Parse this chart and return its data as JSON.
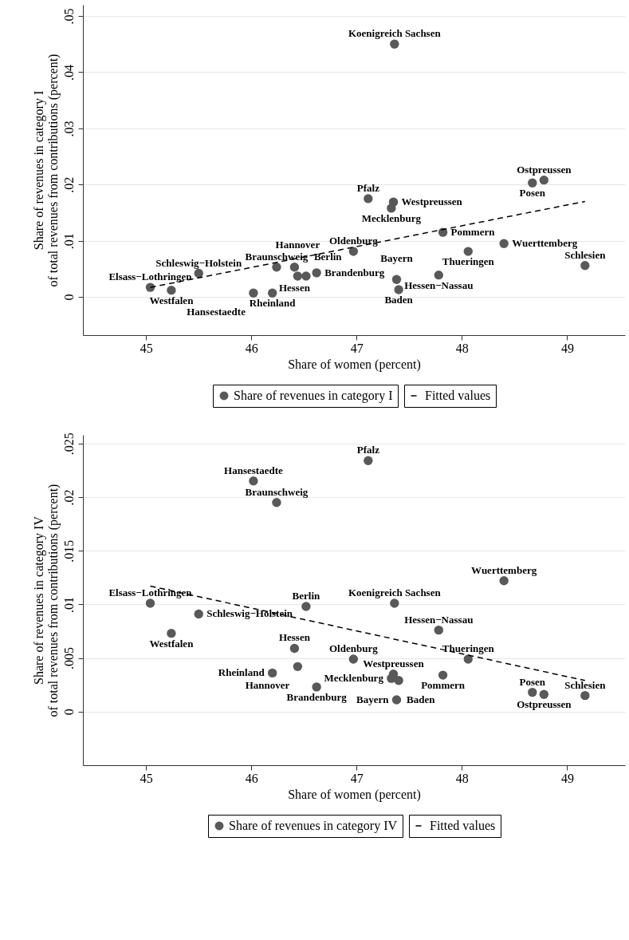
{
  "chart_data": [
    {
      "type": "scatter",
      "xlabel": "Share of women (percent)",
      "ylabel": "Share of revenues in category I\nof total revenues from contributions (percent)",
      "xlim": [
        44.4,
        49.55
      ],
      "xticks": [
        45,
        46,
        47,
        48,
        49
      ],
      "ylim": [
        -0.0068,
        0.052
      ],
      "yticks": [
        {
          "value": 0,
          "label": "0"
        },
        {
          "value": 0.01,
          "label": ".01"
        },
        {
          "value": 0.02,
          "label": ".02"
        },
        {
          "value": 0.03,
          "label": ".03"
        },
        {
          "value": 0.04,
          "label": ".04"
        },
        {
          "value": 0.05,
          "label": ".05"
        }
      ],
      "grid": "y",
      "legend": "bottom",
      "marker": "circle",
      "series": [
        {
          "name": "Share of revenues in category I",
          "type": "scatter",
          "color": "#595959",
          "x": [
            47.36,
            48.78,
            48.67,
            47.35,
            47.33,
            47.11,
            47.82,
            48.4,
            48.06,
            46.97,
            49.17,
            45.5,
            45.24,
            45.04,
            46.24,
            46.41,
            46.44,
            46.62,
            46.52,
            46.2,
            46.02,
            47.38,
            47.4,
            47.78
          ],
          "values": [
            0.045,
            0.0208,
            0.0203,
            0.0169,
            0.0158,
            0.0175,
            0.0115,
            0.0095,
            0.0081,
            0.0081,
            0.0056,
            0.0042,
            0.0012,
            0.0017,
            0.0053,
            0.0053,
            0.0037,
            0.0043,
            0.0037,
            0.0007,
            0.0007,
            0.0031,
            0.0013,
            0.0039
          ]
        },
        {
          "name": "Fitted values",
          "type": "line",
          "color": "#000000",
          "line_style": "dashed",
          "marker": "none",
          "x": [
            45.04,
            49.17
          ],
          "values": [
            0.0017,
            0.017
          ]
        }
      ],
      "annotations": [
        {
          "text": "Koenigreich Sachsen",
          "x": 47.36,
          "y": 0.045
        },
        {
          "text": "Ostpreussen",
          "x": 48.78,
          "y": 0.0208
        },
        {
          "text": "Posen",
          "x": 48.67,
          "y": 0.0203
        },
        {
          "text": "Westpreussen",
          "x": 47.35,
          "y": 0.0169
        },
        {
          "text": "Mecklenburg",
          "x": 47.33,
          "y": 0.0158
        },
        {
          "text": "Pfalz",
          "x": 47.11,
          "y": 0.0175
        },
        {
          "text": "Pommern",
          "x": 47.82,
          "y": 0.0115
        },
        {
          "text": "Wuerttemberg",
          "x": 48.4,
          "y": 0.0095
        },
        {
          "text": "Thueringen",
          "x": 48.06,
          "y": 0.0081
        },
        {
          "text": "Oldenburg",
          "x": 46.97,
          "y": 0.0081
        },
        {
          "text": "Schlesien",
          "x": 49.17,
          "y": 0.0056
        },
        {
          "text": "Schleswig−Holstein",
          "x": 45.5,
          "y": 0.0042
        },
        {
          "text": "Westfalen",
          "x": 45.24,
          "y": 0.0012
        },
        {
          "text": "Elsass−Lothringen",
          "x": 45.04,
          "y": 0.0017
        },
        {
          "text": "Braunschweig",
          "x": 46.24,
          "y": 0.0053
        },
        {
          "text": "Hessen",
          "x": 46.41,
          "y": 0.0053
        },
        {
          "text": "Hannover",
          "x": 46.44,
          "y": 0.0037
        },
        {
          "text": "Brandenburg",
          "x": 46.62,
          "y": 0.0043
        },
        {
          "text": "Berlin",
          "x": 46.52,
          "y": 0.0037
        },
        {
          "text": "Rheinland",
          "x": 46.2,
          "y": 0.0007
        },
        {
          "text": "Hansestaedte",
          "x": 46.02,
          "y": 0.0007
        },
        {
          "text": "Bayern",
          "x": 47.38,
          "y": 0.0031
        },
        {
          "text": "Baden",
          "x": 47.4,
          "y": 0.0013
        },
        {
          "text": "Hessen−Nassau",
          "x": 47.78,
          "y": 0.0039
        }
      ]
    },
    {
      "type": "scatter",
      "xlabel": "Share of women (percent)",
      "ylabel": "Share of revenues in category IV\nof total revenues from contributions (percent)",
      "xlim": [
        44.4,
        49.55
      ],
      "xticks": [
        45,
        46,
        47,
        48,
        49
      ],
      "ylim": [
        -0.005,
        0.0258
      ],
      "yticks": [
        {
          "value": 0,
          "label": "0"
        },
        {
          "value": 0.005,
          "label": ".005"
        },
        {
          "value": 0.01,
          "label": ".01"
        },
        {
          "value": 0.015,
          "label": ".015"
        },
        {
          "value": 0.02,
          "label": ".02"
        },
        {
          "value": 0.025,
          "label": ".025"
        }
      ],
      "grid": "y",
      "legend": "bottom",
      "marker": "circle",
      "series": [
        {
          "name": "Share of revenues in category IV",
          "type": "scatter",
          "color": "#595959",
          "x": [
            47.11,
            46.02,
            46.24,
            48.4,
            47.36,
            45.04,
            45.5,
            46.52,
            45.24,
            47.78,
            46.41,
            48.06,
            46.97,
            46.44,
            46.2,
            47.82,
            47.35,
            47.33,
            47.4,
            46.62,
            47.38,
            48.78,
            48.67,
            49.17
          ],
          "values": [
            0.0234,
            0.0215,
            0.0195,
            0.0122,
            0.0101,
            0.0101,
            0.0091,
            0.0098,
            0.0073,
            0.0076,
            0.0059,
            0.0049,
            0.0049,
            0.0042,
            0.0036,
            0.0034,
            0.0035,
            0.0031,
            0.0029,
            0.0023,
            0.0011,
            0.0016,
            0.0018,
            0.0015
          ]
        },
        {
          "name": "Fitted values",
          "type": "line",
          "color": "#000000",
          "line_style": "dashed",
          "marker": "none",
          "x": [
            45.04,
            49.17
          ],
          "values": [
            0.0117,
            0.0029
          ]
        }
      ],
      "annotations": [
        {
          "text": "Pfalz",
          "x": 47.11,
          "y": 0.0234
        },
        {
          "text": "Hansestaedte",
          "x": 46.02,
          "y": 0.0215
        },
        {
          "text": "Braunschweig",
          "x": 46.24,
          "y": 0.0195
        },
        {
          "text": "Wuerttemberg",
          "x": 48.4,
          "y": 0.0122
        },
        {
          "text": "Koenigreich Sachsen",
          "x": 47.36,
          "y": 0.0101
        },
        {
          "text": "Elsass−Lothringen",
          "x": 45.04,
          "y": 0.0101
        },
        {
          "text": "Schleswig−Holstein",
          "x": 45.5,
          "y": 0.0091
        },
        {
          "text": "Berlin",
          "x": 46.52,
          "y": 0.0098
        },
        {
          "text": "Westfalen",
          "x": 45.24,
          "y": 0.0073
        },
        {
          "text": "Hessen−Nassau",
          "x": 47.78,
          "y": 0.0076
        },
        {
          "text": "Hessen",
          "x": 46.41,
          "y": 0.0059
        },
        {
          "text": "Thueringen",
          "x": 48.06,
          "y": 0.0049
        },
        {
          "text": "Oldenburg",
          "x": 46.97,
          "y": 0.0049
        },
        {
          "text": "Hannover",
          "x": 46.44,
          "y": 0.0042
        },
        {
          "text": "Rheinland",
          "x": 46.2,
          "y": 0.0036
        },
        {
          "text": "Pommern",
          "x": 47.82,
          "y": 0.0034
        },
        {
          "text": "Westpreussen",
          "x": 47.35,
          "y": 0.0035
        },
        {
          "text": "Mecklenburg",
          "x": 47.33,
          "y": 0.0031
        },
        {
          "text": "Baden",
          "x": 47.4,
          "y": 0.0029
        },
        {
          "text": "Brandenburg",
          "x": 46.62,
          "y": 0.0023
        },
        {
          "text": "Bayern",
          "x": 47.38,
          "y": 0.0011
        },
        {
          "text": "Ostpreussen",
          "x": 48.78,
          "y": 0.0016
        },
        {
          "text": "Posen",
          "x": 48.67,
          "y": 0.0018
        },
        {
          "text": "Schlesien",
          "x": 49.17,
          "y": 0.0015
        }
      ]
    }
  ]
}
